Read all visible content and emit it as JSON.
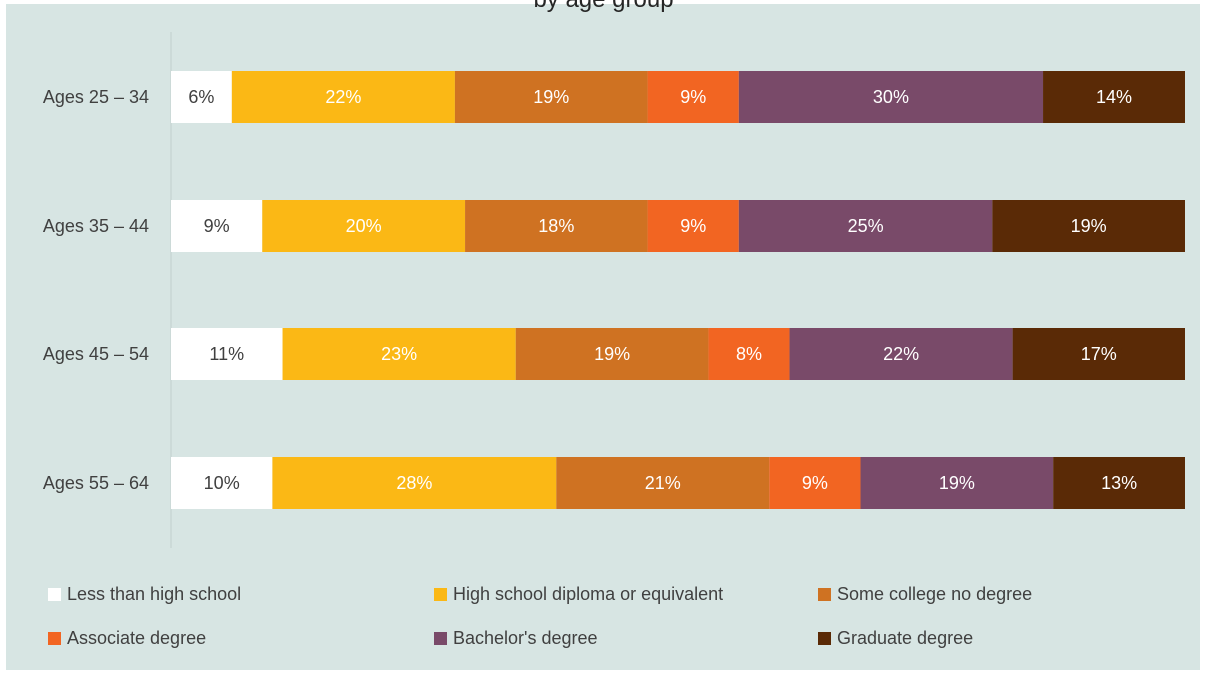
{
  "chart_data": {
    "type": "bar",
    "orientation": "horizontal",
    "stacked": true,
    "normalized_to_100": true,
    "title": "by age group",
    "categories": [
      "Ages 25 – 34",
      "Ages 35 – 44",
      "Ages 45 – 54",
      "Ages 55 – 64"
    ],
    "series": [
      {
        "name": "Less than high school",
        "color": "#ffffff",
        "label_color": "#404040",
        "values": [
          6,
          9,
          11,
          10
        ],
        "labels": [
          "6%",
          "9%",
          "11%",
          "10%"
        ]
      },
      {
        "name": "High school diploma or equivalent",
        "color": "#fbb815",
        "label_color": "#ffffff",
        "values": [
          22,
          20,
          23,
          28
        ],
        "labels": [
          "22%",
          "20%",
          "23%",
          "28%"
        ]
      },
      {
        "name": "Some college no degree",
        "color": "#cf7222",
        "label_color": "#ffffff",
        "values": [
          19,
          18,
          19,
          21
        ],
        "labels": [
          "19%",
          "18%",
          "19%",
          "21%"
        ]
      },
      {
        "name": "Associate degree",
        "color": "#f26522",
        "label_color": "#ffffff",
        "values": [
          9,
          9,
          8,
          9
        ],
        "labels": [
          "9%",
          "9%",
          "8%",
          "9%"
        ]
      },
      {
        "name": "Bachelor's degree",
        "color": "#794a69",
        "label_color": "#ffffff",
        "values": [
          30,
          25,
          22,
          19
        ],
        "labels": [
          "30%",
          "25%",
          "22%",
          "19%"
        ]
      },
      {
        "name": "Graduate degree",
        "color": "#5a2a06",
        "label_color": "#ffffff",
        "values": [
          14,
          19,
          17,
          13
        ],
        "labels": [
          "14%",
          "19%",
          "17%",
          "13%"
        ]
      }
    ],
    "legend_position": "bottom",
    "grid": false,
    "axis_line_color": "#c8d6d4",
    "background_color": "#d7e5e3"
  }
}
